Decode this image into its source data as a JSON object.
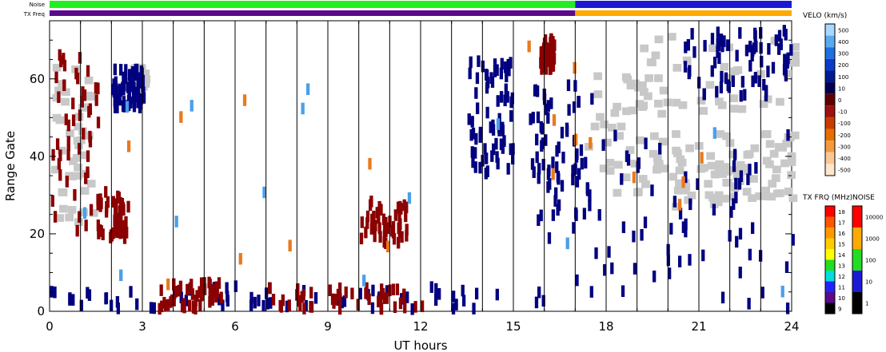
{
  "chart_data": {
    "type": "heatmap",
    "xlabel": "UT hours",
    "ylabel": "Range Gate",
    "xlim": [
      0,
      24
    ],
    "ylim": [
      0,
      75
    ],
    "x_ticks": [
      "0",
      "3",
      "6",
      "9",
      "12",
      "15",
      "18",
      "21",
      "24"
    ],
    "y_ticks": [
      "0",
      "20",
      "40",
      "60"
    ],
    "status_bars": [
      {
        "label": "Noise",
        "segments": [
          {
            "from": 0,
            "to": 17,
            "color": "#22ee22"
          },
          {
            "from": 17,
            "to": 24,
            "color": "#1a1ad6"
          }
        ]
      },
      {
        "label": "TX Freq",
        "segments": [
          {
            "from": 0,
            "to": 17,
            "color": "#5a0a8a"
          },
          {
            "from": 17,
            "to": 24,
            "color": "#ffaa00"
          }
        ]
      }
    ],
    "velocity_colorbar": {
      "title": "VELO (km/s)",
      "ticks": [
        "500",
        "400",
        "300",
        "200",
        "100",
        "10",
        "0",
        "-10",
        "-100",
        "-200",
        "-300",
        "-400",
        "-500"
      ],
      "colors": [
        "#a8d8ff",
        "#5aaaf0",
        "#1f6fe0",
        "#0a3cc8",
        "#001a90",
        "#000050",
        "#600000",
        "#a01010",
        "#c83c00",
        "#e66e00",
        "#f59a3c",
        "#fac896",
        "#ffe6cc"
      ]
    },
    "txfreq_colorbar": {
      "title": "TX FRQ (MHz)",
      "ticks": [
        "18",
        "17",
        "16",
        "15",
        "14",
        "13",
        "12",
        "11",
        "10",
        "9"
      ],
      "colors": [
        "#ff0000",
        "#ff5500",
        "#ff9900",
        "#ffcc00",
        "#ffff00",
        "#22dd22",
        "#00dddd",
        "#2222ff",
        "#5a0a8a",
        "#000000"
      ]
    },
    "noise_colorbar": {
      "title": "NOISE",
      "ticks": [
        "10000",
        "1000",
        "100",
        "10",
        "1"
      ],
      "colors": [
        "#ff0000",
        "#ffaa00",
        "#22dd22",
        "#1a1ad6",
        "#000000"
      ]
    },
    "series": [
      {
        "color": "#c8c8c8",
        "regions": [
          [
            0,
            1.3,
            22,
            62
          ],
          [
            17.3,
            20,
            28,
            60
          ],
          [
            20,
            22,
            26,
            45
          ],
          [
            22,
            24,
            28,
            45
          ],
          [
            18.5,
            24,
            50,
            70
          ],
          [
            2.5,
            3,
            56,
            62
          ]
        ]
      },
      {
        "color": "#000080",
        "regions": [
          [
            0,
            17,
            0,
            6
          ],
          [
            13.5,
            15,
            35,
            66
          ],
          [
            15.5,
            17.5,
            18,
            58
          ],
          [
            2,
            3,
            52,
            62
          ],
          [
            17,
            24,
            0,
            45
          ],
          [
            20.5,
            24,
            55,
            72
          ]
        ]
      },
      {
        "color": "#8b0000",
        "regions": [
          [
            0,
            1.8,
            20,
            66
          ],
          [
            3.5,
            5.5,
            0,
            7
          ],
          [
            7,
            12,
            0,
            6
          ],
          [
            10,
            11.5,
            17,
            28
          ],
          [
            15.8,
            16.3,
            62,
            70
          ],
          [
            1.5,
            2.5,
            18,
            30
          ]
        ]
      },
      {
        "color": "#e87a1e",
        "regions": [
          [
            0,
            24,
            0,
            75
          ]
        ]
      },
      {
        "color": "#4aa0e8",
        "regions": [
          [
            0,
            24,
            0,
            75
          ]
        ]
      }
    ]
  }
}
